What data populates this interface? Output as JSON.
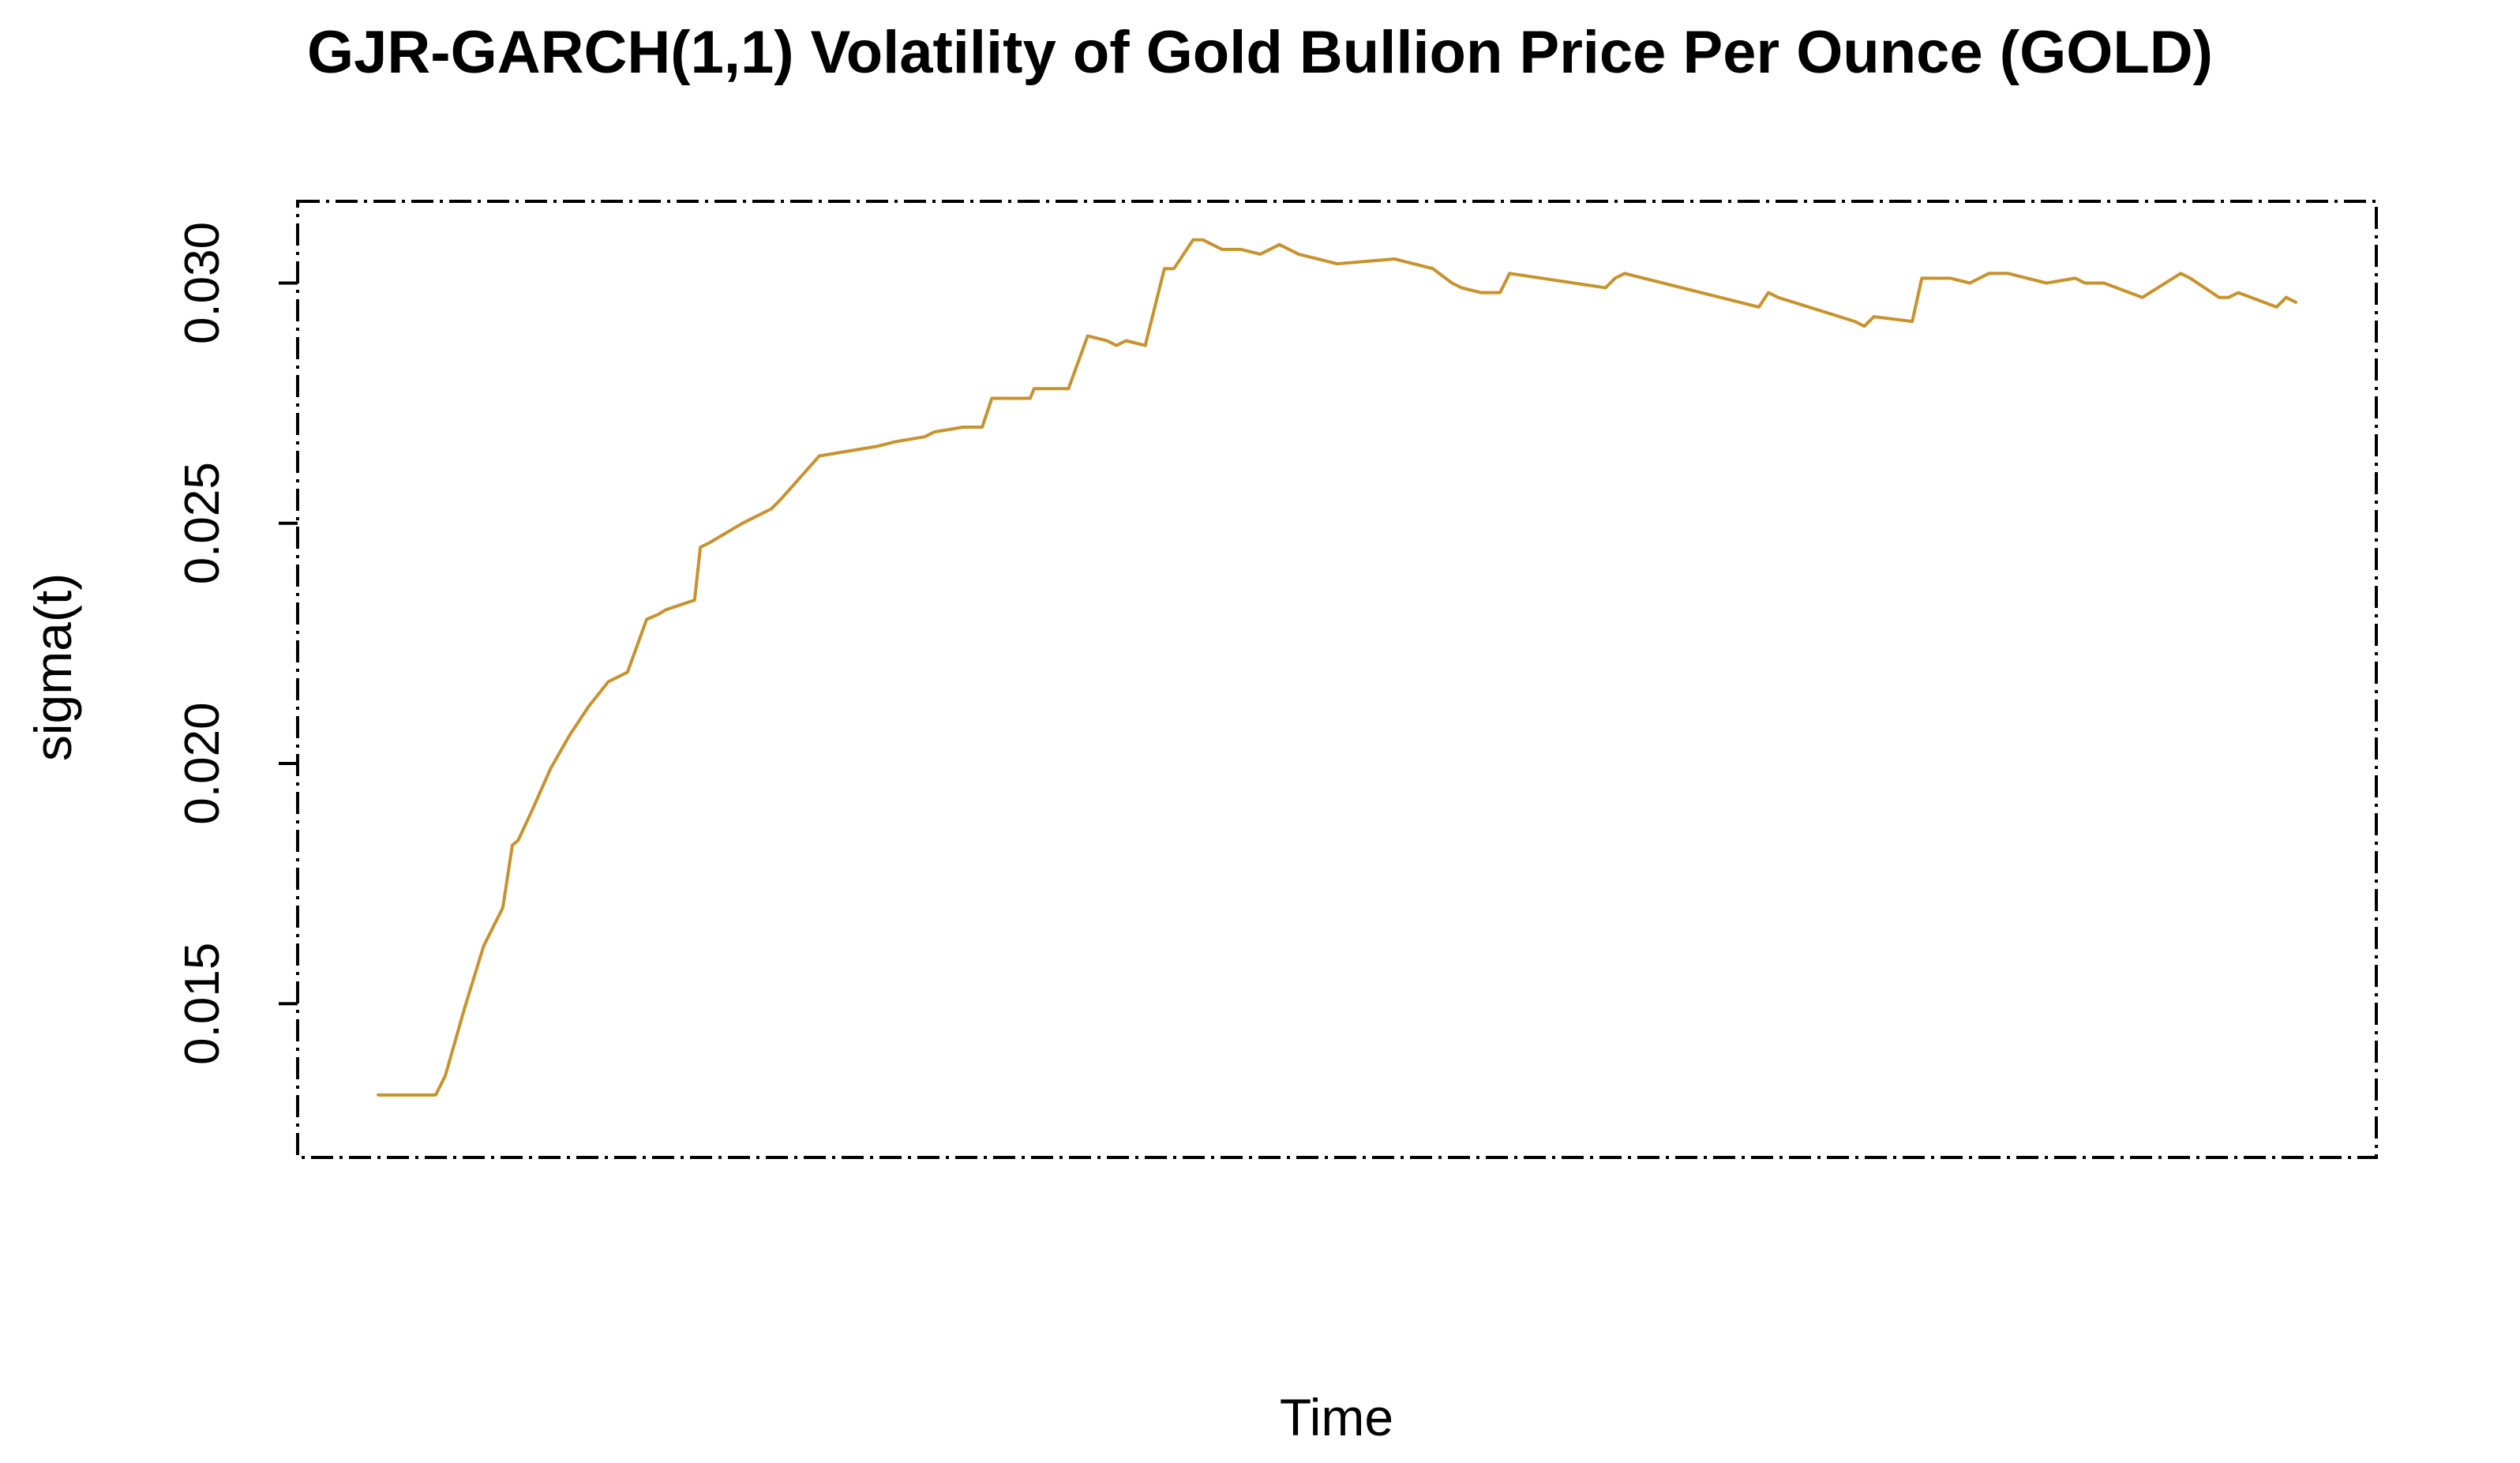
{
  "chart_data": {
    "type": "line",
    "title": "GJR-GARCH(1,1) Volatility of Gold Bullion Price Per Ounce (GOLD)",
    "xlabel": "Time",
    "ylabel": "sigma(t)",
    "ylim": [
      0.0118,
      0.0317
    ],
    "xlim": [
      -4.2,
      104.2
    ],
    "yticks": [
      0.015,
      0.02,
      0.025,
      0.03
    ],
    "ytick_labels": [
      "0.015",
      "0.020",
      "0.025",
      "0.030"
    ],
    "grid": false,
    "legend": "none",
    "colors": {
      "line": "#C8922C",
      "axis": "#000000",
      "frame": "#000000"
    },
    "series": [
      {
        "name": "sigma(t)",
        "x": [
          0,
          3,
          3.5,
          4.5,
          5.5,
          6.5,
          7,
          7.3,
          8,
          9,
          10,
          11,
          12,
          13,
          14,
          14.6,
          15,
          16.5,
          16.8,
          17.3,
          19,
          20.5,
          21,
          23,
          26,
          27,
          28.5,
          29,
          30.5,
          31.5,
          32,
          34,
          34.2,
          36,
          37,
          38,
          38.5,
          39,
          40,
          41,
          41.5,
          42.5,
          43,
          44,
          45,
          46,
          47,
          48,
          50,
          53,
          55,
          56,
          56.5,
          57.5,
          58.5,
          59,
          64,
          64.5,
          65,
          72,
          72.5,
          73,
          77,
          77.5,
          78,
          80,
          80.5,
          82,
          83,
          84,
          85,
          86,
          87,
          88.5,
          89,
          89.5,
          90,
          92,
          94,
          94.5,
          96,
          96.5,
          97,
          99,
          99.5,
          100
        ],
        "y": [
          0.0131,
          0.0131,
          0.0135,
          0.0149,
          0.0162,
          0.017,
          0.0183,
          0.0184,
          0.019,
          0.0199,
          0.0206,
          0.0212,
          0.0217,
          0.0219,
          0.023,
          0.0231,
          0.0232,
          0.0234,
          0.0245,
          0.0246,
          0.025,
          0.0253,
          0.0255,
          0.0264,
          0.0266,
          0.0267,
          0.0268,
          0.0269,
          0.027,
          0.027,
          0.0276,
          0.0276,
          0.0278,
          0.0278,
          0.0289,
          0.0288,
          0.0287,
          0.0288,
          0.0287,
          0.0303,
          0.0303,
          0.0309,
          0.0309,
          0.0307,
          0.0307,
          0.0306,
          0.0308,
          0.0306,
          0.0304,
          0.0305,
          0.0303,
          0.03,
          0.0299,
          0.0298,
          0.0298,
          0.0302,
          0.0299,
          0.0301,
          0.0302,
          0.0295,
          0.0298,
          0.0297,
          0.0292,
          0.0291,
          0.0293,
          0.0292,
          0.0301,
          0.0301,
          0.03,
          0.0302,
          0.0302,
          0.0301,
          0.03,
          0.0301,
          0.03,
          0.03,
          0.03,
          0.0297,
          0.0302,
          0.0301,
          0.0297,
          0.0297,
          0.0298,
          0.0295,
          0.0297,
          0.0296
        ]
      }
    ]
  }
}
